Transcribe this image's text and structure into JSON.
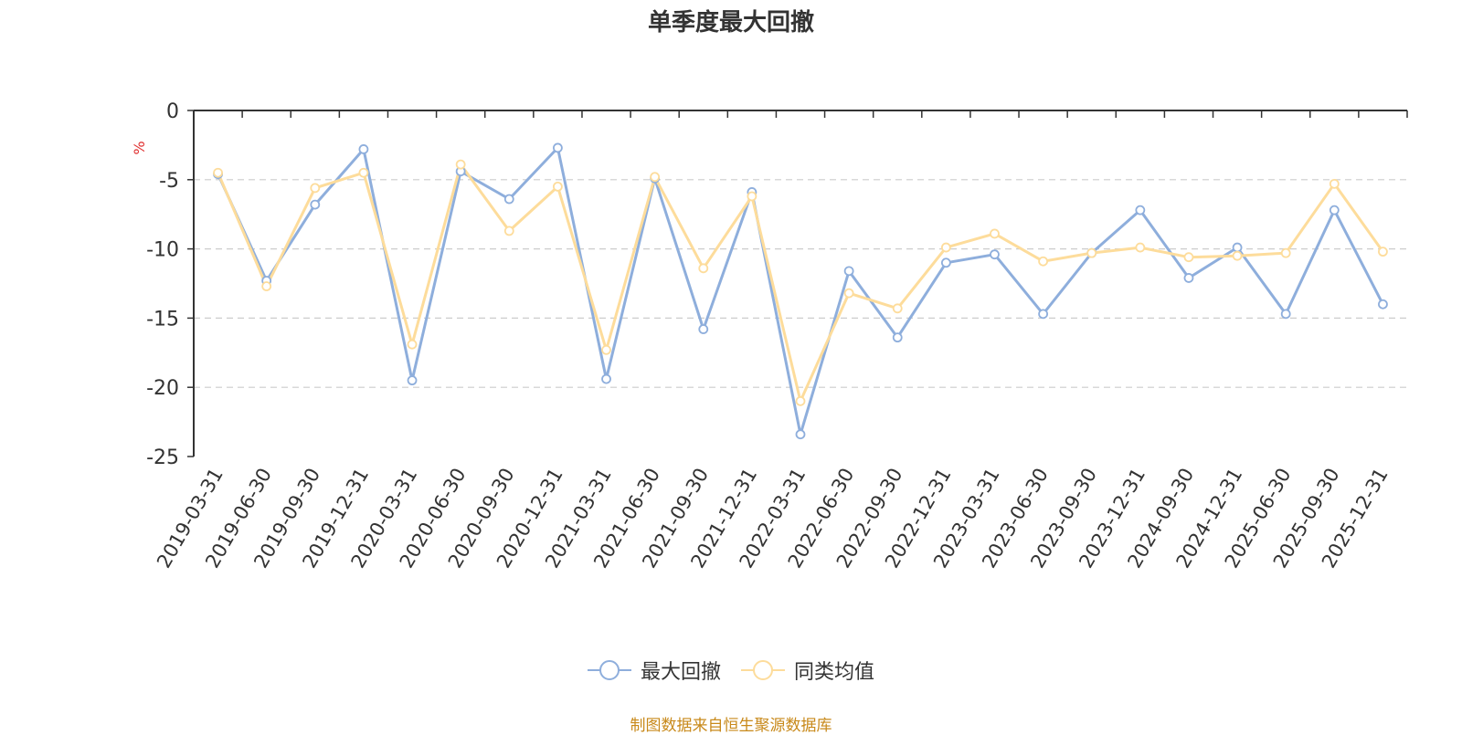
{
  "chart_data": {
    "type": "line",
    "title": "单季度最大回撤",
    "ylabel": "%",
    "ylim": [
      -25,
      0
    ],
    "yticks": [
      0,
      -5,
      -10,
      -15,
      -20,
      -25
    ],
    "grid": true,
    "legend_position": "bottom-center",
    "categories": [
      "2019-03-31",
      "2019-06-30",
      "2019-09-30",
      "2019-12-31",
      "2020-03-31",
      "2020-06-30",
      "2020-09-30",
      "2020-12-31",
      "2021-03-31",
      "2021-06-30",
      "2021-09-30",
      "2021-12-31",
      "2022-03-31",
      "2022-06-30",
      "2022-09-30",
      "2022-12-31",
      "2023-03-31",
      "2023-06-30",
      "2023-09-30",
      "2023-12-31",
      "2024-09-30",
      "2024-12-31",
      "2025-06-30",
      "2025-09-30",
      "2025-12-31"
    ],
    "series": [
      {
        "name": "最大回撤",
        "color": "#8eaedc",
        "values": [
          -4.6,
          -12.3,
          -6.8,
          -2.8,
          -19.5,
          -4.4,
          -6.4,
          -2.7,
          -19.4,
          -4.9,
          -15.8,
          -5.9,
          -23.4,
          -11.6,
          -16.4,
          -11.0,
          -10.4,
          -14.7,
          -10.3,
          -7.2,
          -12.1,
          -9.9,
          -14.7,
          -7.2,
          -14.0
        ]
      },
      {
        "name": "同类均值",
        "color": "#fddc9b",
        "values": [
          -4.5,
          -12.7,
          -5.6,
          -4.5,
          -16.9,
          -3.9,
          -8.7,
          -5.5,
          -17.3,
          -4.8,
          -11.4,
          -6.2,
          -21.0,
          -13.2,
          -14.3,
          -9.9,
          -8.9,
          -10.9,
          -10.3,
          -9.9,
          -10.6,
          -10.5,
          -10.3,
          -5.3,
          -10.2
        ]
      }
    ]
  },
  "source_text": "制图数据来自恒生聚源数据库"
}
